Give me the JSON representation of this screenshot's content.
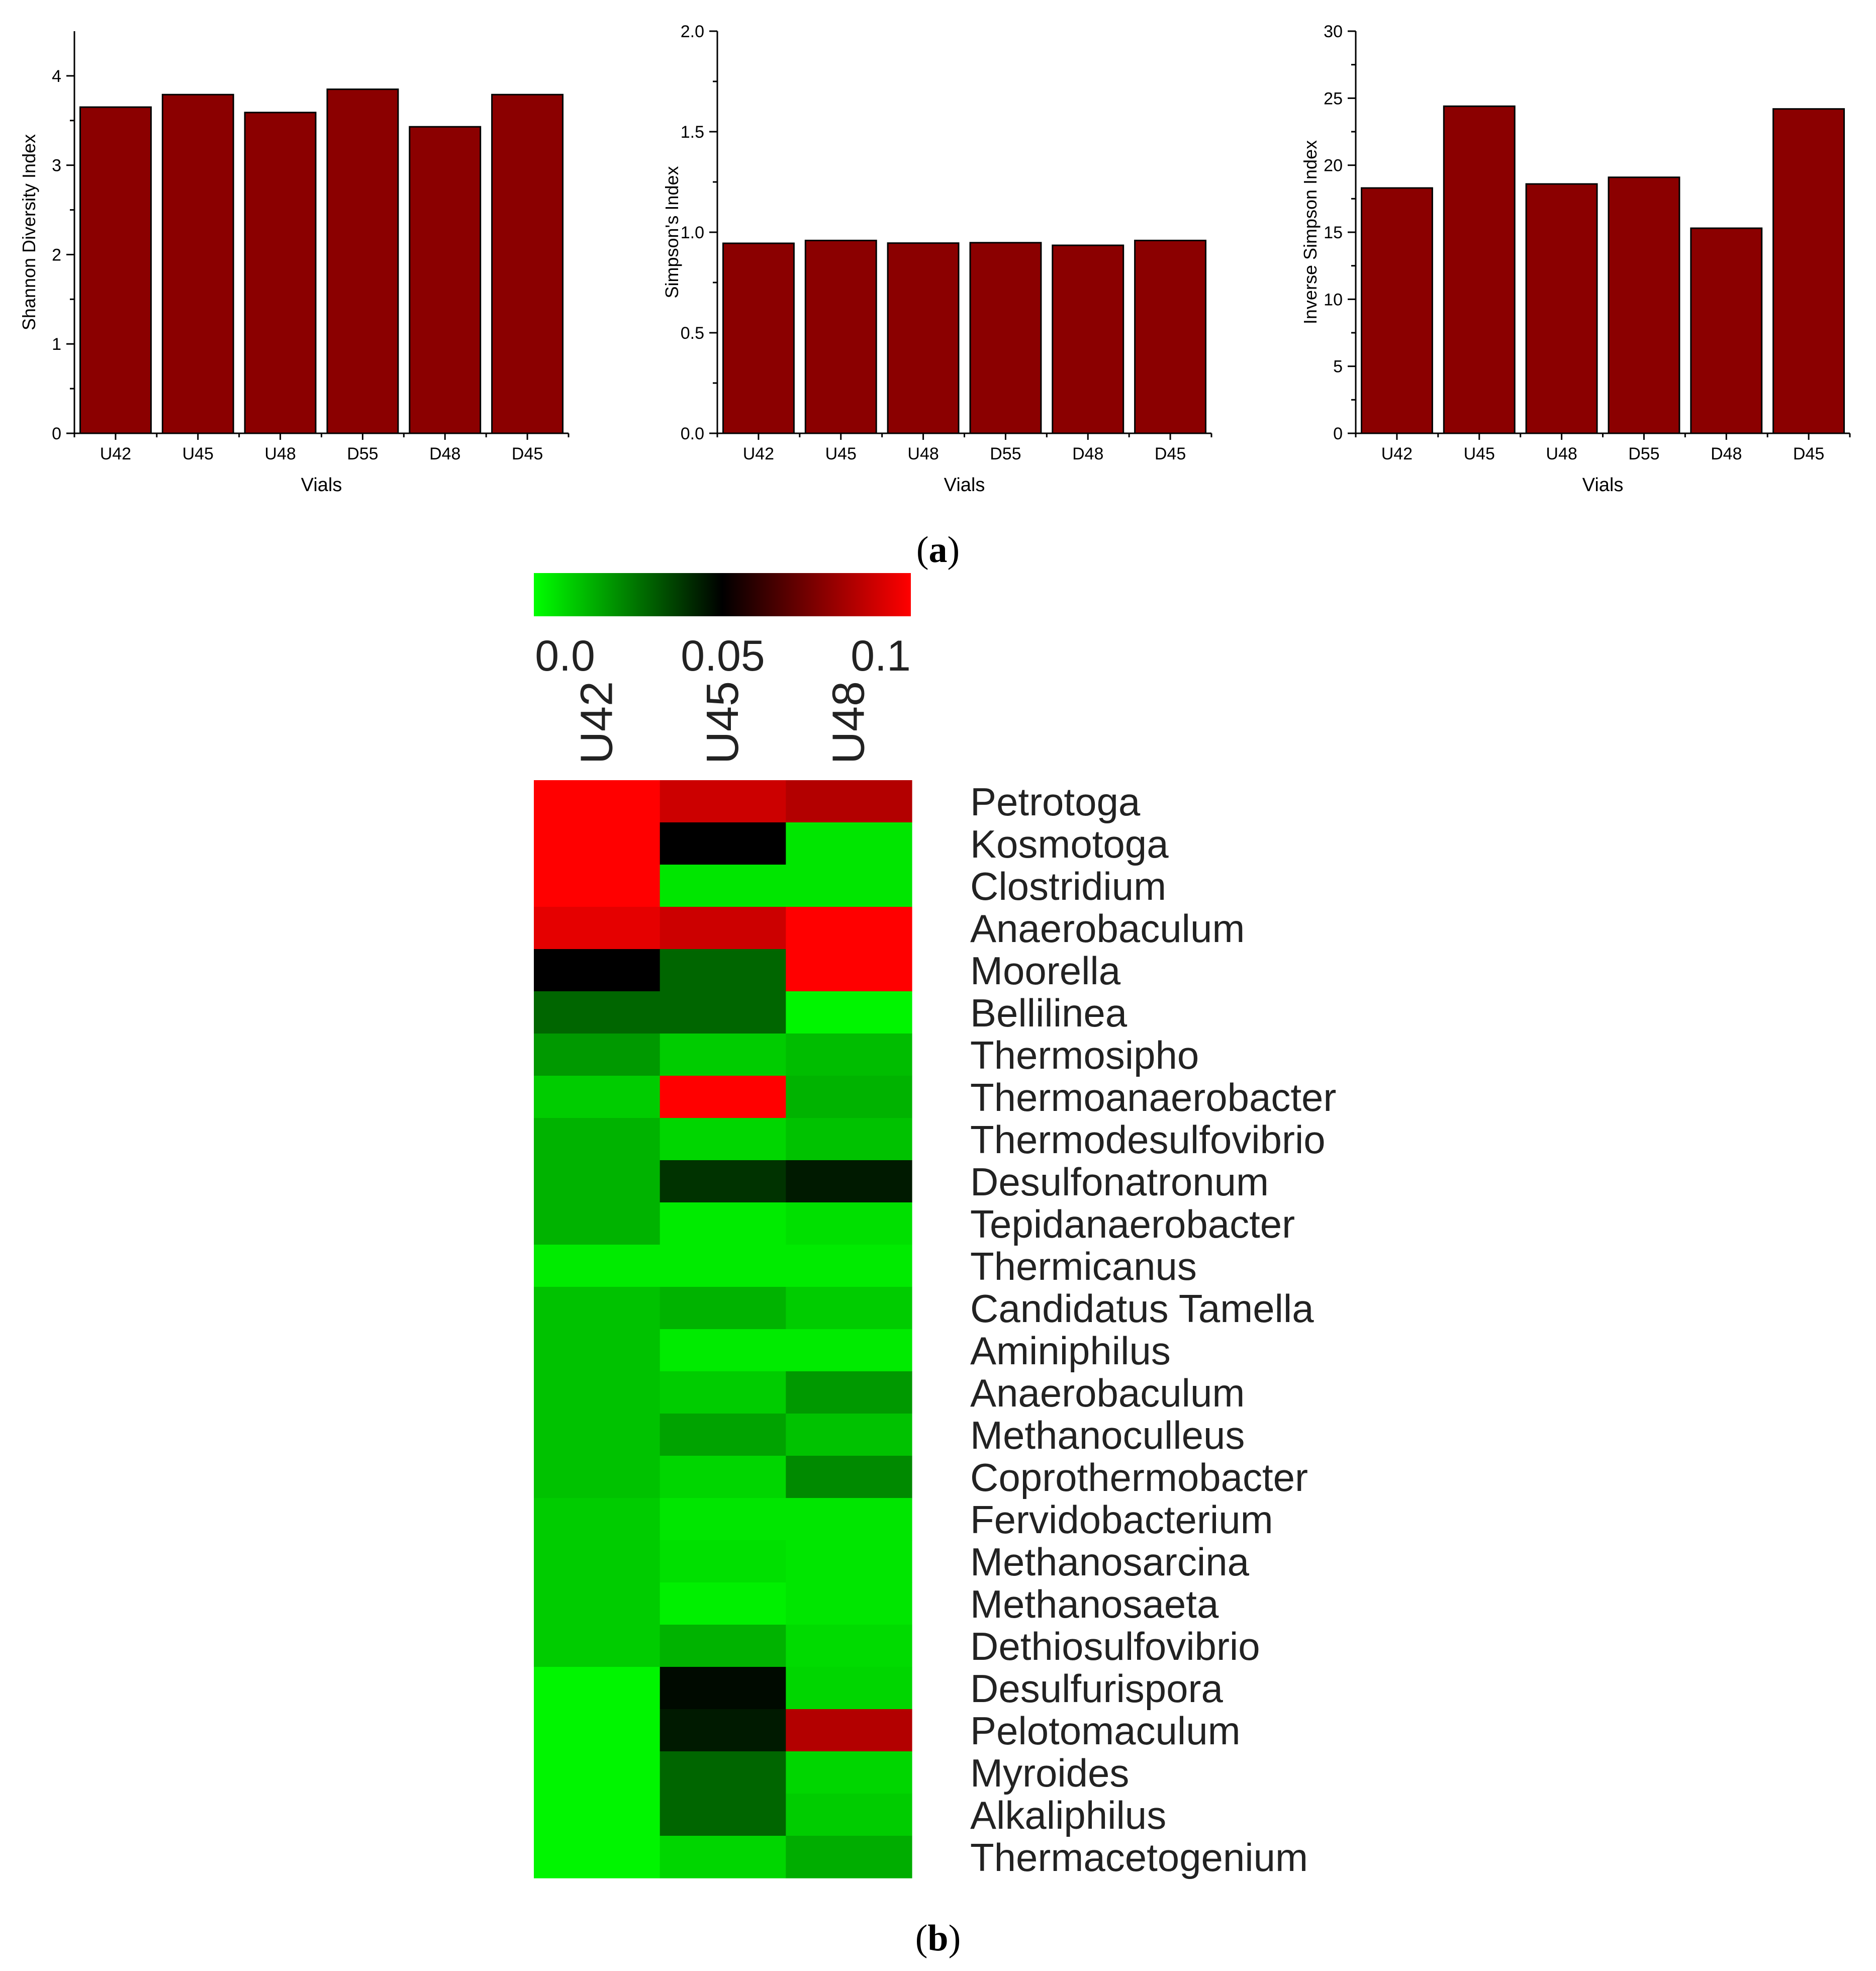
{
  "panel_labels": {
    "a": "a",
    "b": "b"
  },
  "chart_data": [
    {
      "type": "bar",
      "categories": [
        "U42",
        "U45",
        "U48",
        "D55",
        "D48",
        "D45"
      ],
      "values": [
        3.65,
        3.79,
        3.59,
        3.85,
        3.43,
        3.79
      ],
      "xlabel": "Vials",
      "ylabel": "Shannon Diversity Index",
      "ylim": [
        0,
        4.5
      ],
      "yticks": [
        "0",
        "1",
        "2",
        "3",
        "4"
      ],
      "bar_color": "#8b0000"
    },
    {
      "type": "bar",
      "categories": [
        "U42",
        "U45",
        "U48",
        "D55",
        "D48",
        "D45"
      ],
      "values": [
        0.945,
        0.959,
        0.946,
        0.948,
        0.935,
        0.959
      ],
      "xlabel": "Vials",
      "ylabel": "Simpson's Index",
      "ylim": [
        0,
        2.0
      ],
      "yticks": [
        "0.0",
        "0.5",
        "1.0",
        "1.5",
        "2.0"
      ],
      "bar_color": "#8b0000"
    },
    {
      "type": "bar",
      "categories": [
        "U42",
        "U45",
        "U48",
        "D55",
        "D48",
        "D45"
      ],
      "values": [
        18.3,
        24.4,
        18.6,
        19.1,
        15.3,
        24.2
      ],
      "xlabel": "Vials",
      "ylabel": "Inverse Simpson Index",
      "ylim": [
        0,
        30
      ],
      "yticks": [
        "0",
        "5",
        "10",
        "15",
        "20",
        "25",
        "30"
      ],
      "bar_color": "#8b0000"
    },
    {
      "type": "heatmap",
      "columns": [
        "U42",
        "U45",
        "U48"
      ],
      "rows": [
        "Petrotoga",
        "Kosmotoga",
        "Clostridium",
        "Anaerobaculum",
        "Moorella",
        "Bellilinea",
        "Thermosipho",
        "Thermoanaerobacter",
        "Thermodesulfovibrio",
        "Desulfonatronum",
        "Tepidanaerobacter",
        "Thermicanus",
        "Candidatus Tamella",
        "Aminiphilus",
        "Anaerobaculum",
        "Methanoculleus",
        "Coprothermobacter",
        "Fervidobacterium",
        "Methanosarcina",
        "Methanosaeta",
        "Dethiosulfovibrio",
        "Desulfurispora",
        "Pelotomaculum",
        "Myroides",
        "Alkaliphilus",
        "Thermacetogenium"
      ],
      "values": [
        [
          0.1,
          0.09,
          0.085
        ],
        [
          0.1,
          0.05,
          0.005
        ],
        [
          0.1,
          0.005,
          0.005
        ],
        [
          0.095,
          0.09,
          0.1
        ],
        [
          0.05,
          0.03,
          0.1
        ],
        [
          0.03,
          0.03,
          0.002
        ],
        [
          0.02,
          0.01,
          0.013
        ],
        [
          0.01,
          0.1,
          0.015
        ],
        [
          0.015,
          0.008,
          0.012
        ],
        [
          0.015,
          0.04,
          0.045
        ],
        [
          0.015,
          0.004,
          0.006
        ],
        [
          0.004,
          0.004,
          0.004
        ],
        [
          0.012,
          0.015,
          0.01
        ],
        [
          0.012,
          0.004,
          0.004
        ],
        [
          0.012,
          0.01,
          0.02
        ],
        [
          0.012,
          0.018,
          0.012
        ],
        [
          0.012,
          0.008,
          0.023
        ],
        [
          0.01,
          0.005,
          0.005
        ],
        [
          0.01,
          0.006,
          0.005
        ],
        [
          0.01,
          0.003,
          0.005
        ],
        [
          0.01,
          0.015,
          0.007
        ],
        [
          0.002,
          0.048,
          0.008
        ],
        [
          0.002,
          0.045,
          0.085
        ],
        [
          0.002,
          0.03,
          0.008
        ],
        [
          0.002,
          0.03,
          0.01
        ],
        [
          0.002,
          0.008,
          0.016
        ]
      ],
      "colorbar": {
        "ticks": [
          "0.0",
          "0.05",
          "0.1"
        ],
        "min": 0,
        "max": 0.1,
        "colors": [
          "#00ff00",
          "#000000",
          "#ff0000"
        ]
      }
    }
  ]
}
